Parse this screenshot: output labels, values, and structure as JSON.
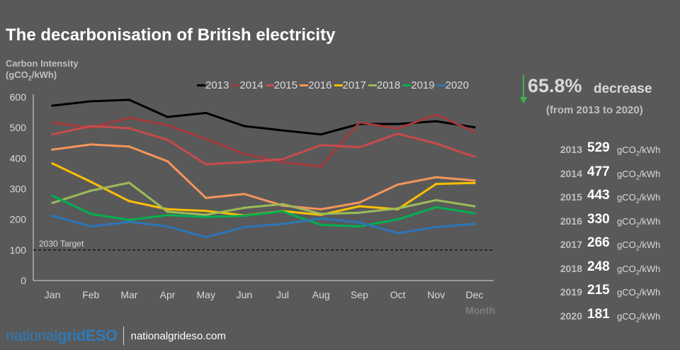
{
  "title": "The decarbonisation of British electricity",
  "ylabel_line1": "Carbon Intensity",
  "ylabel_line2_prefix": "(gCO",
  "ylabel_line2_sub": "2",
  "ylabel_line2_suffix": "/kWh)",
  "decrease": {
    "value": "65.8%",
    "word": "decrease",
    "sub": "(from 2013 to 2020)"
  },
  "summary": [
    {
      "year": "2013",
      "value": "529"
    },
    {
      "year": "2014",
      "value": "477"
    },
    {
      "year": "2015",
      "value": "443"
    },
    {
      "year": "2016",
      "value": "330"
    },
    {
      "year": "2017",
      "value": "266"
    },
    {
      "year": "2018",
      "value": "248"
    },
    {
      "year": "2019",
      "value": "215"
    },
    {
      "year": "2020",
      "value": "181"
    }
  ],
  "unit_prefix": "gCO",
  "unit_sub": "2",
  "unit_suffix": "/kWh",
  "footer": {
    "logo_part1": "national",
    "logo_part2": "grid",
    "logo_part3": "ESO",
    "url": "nationalgrideso.com"
  },
  "colors": {
    "background": "#595959",
    "arrow": "#3cb54a"
  },
  "chart_data": {
    "type": "line",
    "xlabel": "Month",
    "ylabel": "Carbon Intensity (gCO2/kWh)",
    "categories": [
      "Jan",
      "Feb",
      "Mar",
      "Apr",
      "May",
      "Jun",
      "Jul",
      "Aug",
      "Sep",
      "Oct",
      "Nov",
      "Dec"
    ],
    "ylim": [
      0,
      600
    ],
    "yticks": [
      0,
      100,
      200,
      300,
      400,
      500,
      600
    ],
    "grid": false,
    "legend": "top",
    "target": {
      "value": 100,
      "label": "2030 Target"
    },
    "series": [
      {
        "name": "2013",
        "color": "#000000",
        "values": [
          572,
          586,
          591,
          535,
          548,
          505,
          491,
          478,
          512,
          512,
          521,
          501
        ]
      },
      {
        "name": "2014",
        "color": "#a33a3a",
        "values": [
          516,
          500,
          532,
          508,
          463,
          414,
          387,
          373,
          517,
          497,
          543,
          486
        ]
      },
      {
        "name": "2015",
        "color": "#c94a4a",
        "values": [
          478,
          505,
          498,
          460,
          380,
          387,
          397,
          443,
          436,
          480,
          448,
          405
        ]
      },
      {
        "name": "2016",
        "color": "#f4955c",
        "values": [
          428,
          445,
          438,
          390,
          270,
          283,
          245,
          233,
          255,
          314,
          338,
          327
        ]
      },
      {
        "name": "2017",
        "color": "#ffc000",
        "values": [
          383,
          323,
          260,
          233,
          228,
          213,
          227,
          215,
          243,
          233,
          316,
          319
        ]
      },
      {
        "name": "2018",
        "color": "#9bbb59",
        "values": [
          254,
          294,
          320,
          225,
          215,
          238,
          250,
          218,
          222,
          236,
          263,
          243
        ]
      },
      {
        "name": "2019",
        "color": "#00b050",
        "values": [
          277,
          218,
          198,
          214,
          208,
          212,
          226,
          182,
          177,
          200,
          240,
          220
        ]
      },
      {
        "name": "2020",
        "color": "#2e75b6",
        "values": [
          212,
          177,
          192,
          177,
          142,
          175,
          185,
          203,
          190,
          155,
          175,
          185
        ]
      }
    ]
  }
}
